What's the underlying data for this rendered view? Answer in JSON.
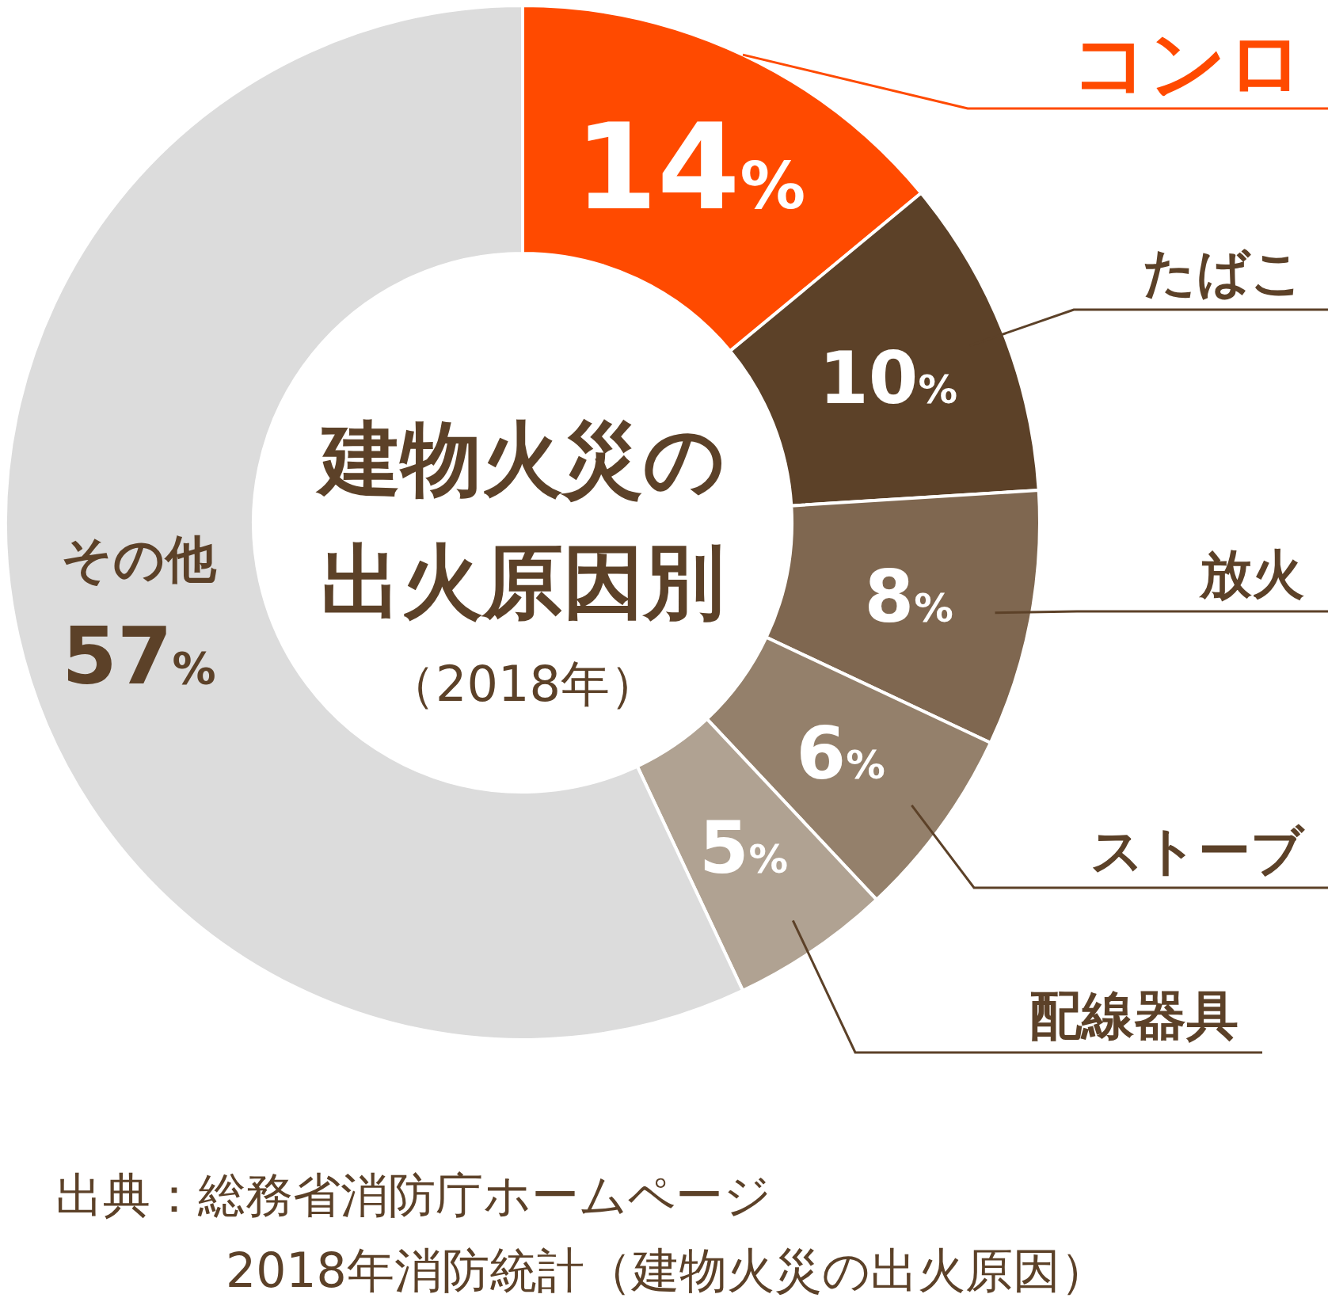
{
  "chart_data": {
    "type": "donut",
    "title": "建物火災の出火原因別",
    "subtitle": "（2018年）",
    "categories": [
      "コンロ",
      "たばこ",
      "放火",
      "ストーブ",
      "配線器具",
      "その他"
    ],
    "values": [
      14,
      10,
      8,
      6,
      5,
      57
    ],
    "colors": [
      "#ff4a00",
      "#5c4128",
      "#7f6750",
      "#94806b",
      "#b0a292",
      "#dcdcdc"
    ],
    "value_labels": [
      "14%",
      "10%",
      "8%",
      "6%",
      "5%",
      "57%"
    ],
    "annotations": [
      "出典：総務省消防庁ホームページ",
      "2018年消防統計（建物火災の出火原因）"
    ]
  }
}
